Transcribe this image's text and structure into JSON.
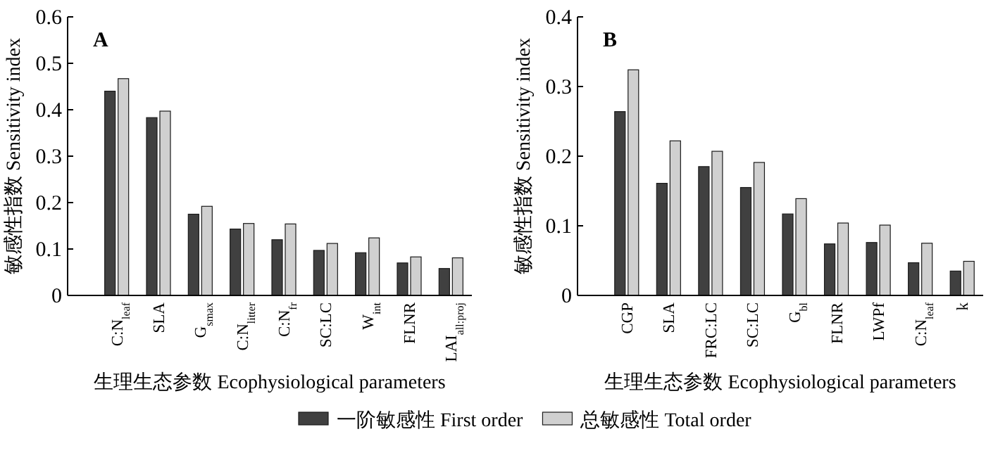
{
  "chart_data": [
    {
      "type": "bar",
      "title": "A",
      "ylabel": "敏感性指数 Sensitivity index",
      "xlabel": "生理生态参数 Ecophysiological parameters",
      "categories": [
        "C:N$_{leaf}$",
        "SLA",
        "G$_{smax}$",
        "C:N$_{litter}$",
        "C:N$_{fr}$",
        "SC:LC",
        "W$_{int}$",
        "FLNR",
        "LAI$_{all:proj}$"
      ],
      "series": [
        {
          "name": "一阶敏感性 First order",
          "color": "#404040",
          "values": [
            0.44,
            0.383,
            0.175,
            0.143,
            0.12,
            0.097,
            0.092,
            0.07,
            0.058
          ]
        },
        {
          "name": "总敏感性 Total order",
          "color": "#d0d0d0",
          "values": [
            0.467,
            0.397,
            0.192,
            0.155,
            0.154,
            0.112,
            0.124,
            0.083,
            0.081
          ]
        }
      ],
      "ylim": [
        0,
        0.6
      ],
      "yticks": [
        {
          "value": 0,
          "label": "0"
        },
        0.1,
        0.2,
        0.3,
        0.4,
        0.5,
        0.6
      ],
      "grid": false,
      "legend": "bottom"
    },
    {
      "type": "bar",
      "title": "B",
      "ylabel": "敏感性指数 Sensitivity index",
      "xlabel": "生理生态参数 Ecophysiological parameters",
      "categories": [
        "CGP",
        "SLA",
        "FRC:LC",
        "SC:LC",
        "G$_{bl}$",
        "FLNR",
        "LWPf",
        "C:N$_{leaf}$",
        "k"
      ],
      "series": [
        {
          "color": "#404040",
          "values": [
            0.264,
            0.161,
            0.185,
            0.155,
            0.117,
            0.074,
            0.076,
            0.047,
            0.035
          ]
        },
        {
          "color": "#d0d0d0",
          "values": [
            0.324,
            0.222,
            0.207,
            0.191,
            0.139,
            0.104,
            0.101,
            0.075,
            0.049
          ]
        }
      ],
      "ylim": [
        0,
        0.4
      ],
      "yticks": [
        {
          "value": 0,
          "label": "0"
        },
        0.1,
        0.2,
        0.3,
        0.4
      ],
      "grid": false
    }
  ]
}
